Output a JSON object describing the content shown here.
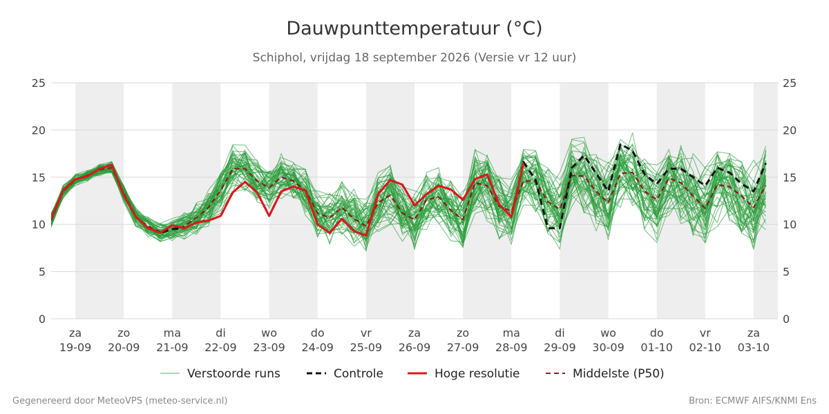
{
  "chart_data": {
    "type": "line",
    "title": "Dauwpunttemperatuur (°C)",
    "subtitle": "Schiphol, vrijdag 18 september 2026 (Versie vr 12 uur)",
    "ylim": [
      0,
      25
    ],
    "y_ticks": [
      0,
      5,
      10,
      15,
      20,
      25
    ],
    "xlim": [
      "2026-09-18 12:00",
      "2026-10-03 12:00"
    ],
    "x_step_hours": 6,
    "x_ticks": [
      {
        "dow": "za",
        "date": "19-09"
      },
      {
        "dow": "zo",
        "date": "20-09"
      },
      {
        "dow": "ma",
        "date": "21-09"
      },
      {
        "dow": "di",
        "date": "22-09"
      },
      {
        "dow": "wo",
        "date": "23-09"
      },
      {
        "dow": "do",
        "date": "24-09"
      },
      {
        "dow": "vr",
        "date": "25-09"
      },
      {
        "dow": "za",
        "date": "26-09"
      },
      {
        "dow": "zo",
        "date": "27-09"
      },
      {
        "dow": "ma",
        "date": "28-09"
      },
      {
        "dow": "di",
        "date": "29-09"
      },
      {
        "dow": "wo",
        "date": "30-09"
      },
      {
        "dow": "do",
        "date": "01-10"
      },
      {
        "dow": "vr",
        "date": "02-10"
      },
      {
        "dow": "za",
        "date": "03-10"
      }
    ],
    "grid": true,
    "night_shading": "grey bands on alternating days",
    "legend_placement": "bottom",
    "legend": {
      "perturbed": "Verstoorde runs",
      "control": "Controle",
      "hires": "Hoge resolutie",
      "median": "Middelste (P50)"
    },
    "series": [
      {
        "name": "Controle",
        "color": "#111111",
        "style": "dashed",
        "start": "2026-09-18 12:00",
        "step_hours": 6,
        "values": [
          10.6,
          13.6,
          14.8,
          15.1,
          15.9,
          16.3,
          13.1,
          10.8,
          9.6,
          9.1,
          9.5,
          9.6,
          10.2,
          10.4,
          10.9,
          13.4,
          14.5,
          13.4,
          10.9,
          13.5,
          14.0,
          13.6,
          10.0,
          9.1,
          10.6,
          9.3,
          8.8,
          13.2,
          14.7,
          14.2,
          12.0,
          13.2,
          14.1,
          13.7,
          12.6,
          14.8,
          15.3,
          12.1,
          10.8,
          16.6,
          14.7,
          9.6,
          9.6,
          16.0,
          17.3,
          15.4,
          13.5,
          18.5,
          17.8,
          15.3,
          14.3,
          15.9,
          15.9,
          15.0,
          14.1,
          16.0,
          15.5,
          14.3,
          13.5,
          16.5
        ]
      },
      {
        "name": "Hoge resolutie",
        "color": "#e0161b",
        "style": "solid",
        "start": "2026-09-18 12:00",
        "step_hours": 6,
        "values": [
          10.6,
          13.6,
          14.8,
          15.1,
          15.9,
          16.3,
          13.1,
          10.8,
          9.6,
          9.1,
          9.9,
          9.6,
          10.2,
          10.4,
          10.9,
          13.4,
          14.5,
          13.4,
          10.9,
          13.5,
          14.0,
          13.6,
          10.0,
          9.1,
          10.6,
          9.3,
          8.8,
          13.2,
          14.7,
          14.2,
          12.0,
          13.2,
          14.1,
          13.7,
          12.6,
          14.8,
          15.3,
          12.1,
          10.8,
          16.5
        ]
      },
      {
        "name": "Middelste (P50)",
        "color": "#8b1a1a",
        "style": "dashed",
        "start": "2026-09-18 12:00",
        "step_hours": 6,
        "values": [
          10.4,
          13.5,
          14.7,
          15.2,
          15.8,
          16.0,
          13.3,
          10.8,
          9.8,
          9.2,
          9.5,
          9.8,
          10.7,
          11.8,
          13.6,
          15.9,
          15.9,
          14.6,
          13.9,
          15.0,
          14.6,
          13.6,
          11.2,
          10.7,
          11.8,
          10.6,
          9.8,
          12.3,
          13.1,
          11.2,
          10.5,
          12.6,
          12.9,
          11.5,
          10.5,
          14.4,
          14.1,
          11.9,
          11.4,
          14.6,
          14.6,
          12.4,
          11.6,
          15.2,
          15.1,
          13.5,
          12.3,
          15.4,
          15.5,
          13.5,
          12.6,
          14.9,
          14.4,
          13.0,
          11.7,
          14.2,
          14.0,
          13.0,
          11.8,
          14.1
        ]
      }
    ],
    "ensemble": {
      "name": "Verstoorde runs",
      "color": "#2a9d3a",
      "member_count": 50,
      "start": "2026-09-18 12:00",
      "step_hours": 6,
      "spread_half_width": [
        0.8,
        0.7,
        0.6,
        0.6,
        0.6,
        0.6,
        0.9,
        1.0,
        1.0,
        1.0,
        1.1,
        1.3,
        1.6,
        2.0,
        2.4,
        2.4,
        2.3,
        2.2,
        2.2,
        2.2,
        2.3,
        2.5,
        2.6,
        2.7,
        2.8,
        2.9,
        3.0,
        3.0,
        3.0,
        3.1,
        3.1,
        3.2,
        3.2,
        3.3,
        3.3,
        3.3,
        3.4,
        3.4,
        3.5,
        3.5,
        3.6,
        3.6,
        3.7,
        3.7,
        3.8,
        3.8,
        3.9,
        3.9,
        4.0,
        4.0,
        4.1,
        4.1,
        4.2,
        4.2,
        4.3,
        4.3,
        4.4,
        4.4,
        4.5,
        4.5
      ]
    },
    "footer_left": "Gegenereerd door MeteoVPS (meteo-service.nl)",
    "footer_right": "Bron: ECMWF AIFS/KNMI Ens"
  }
}
